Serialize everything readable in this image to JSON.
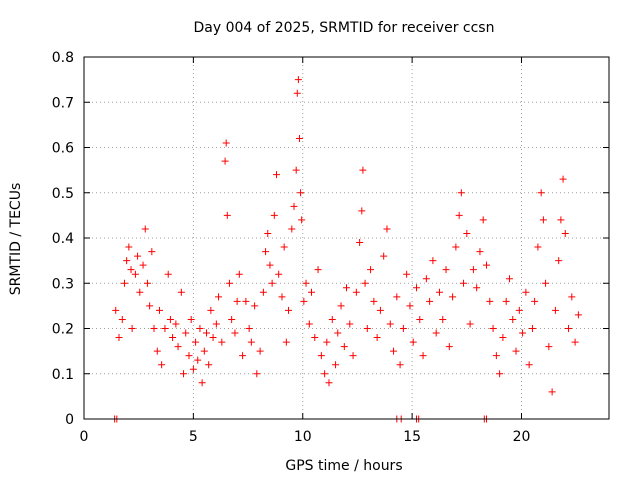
{
  "chart_data": {
    "type": "scatter",
    "title": "Day 004 of 2025, SRMTID for receiver ccsn",
    "xlabel": "GPS time / hours",
    "ylabel": "SRMTID / TECUs",
    "xlim": [
      0,
      24
    ],
    "ylim": [
      0,
      0.8
    ],
    "x_ticks": [
      0,
      5,
      10,
      15,
      20
    ],
    "y_ticks": [
      0,
      0.1,
      0.2,
      0.3,
      0.4,
      0.5,
      0.6,
      0.7,
      0.8
    ],
    "grid": true,
    "marker": "+",
    "color": "#ff0000",
    "series": [
      {
        "name": "SRMTID",
        "points": [
          [
            1.45,
            0.24
          ],
          [
            1.6,
            0.18
          ],
          [
            1.75,
            0.22
          ],
          [
            1.85,
            0.3
          ],
          [
            1.95,
            0.35
          ],
          [
            2.05,
            0.38
          ],
          [
            2.15,
            0.33
          ],
          [
            2.2,
            0.2
          ],
          [
            2.35,
            0.32
          ],
          [
            2.45,
            0.36
          ],
          [
            2.55,
            0.28
          ],
          [
            2.7,
            0.34
          ],
          [
            2.8,
            0.42
          ],
          [
            2.9,
            0.3
          ],
          [
            3.0,
            0.25
          ],
          [
            3.1,
            0.37
          ],
          [
            3.2,
            0.2
          ],
          [
            3.35,
            0.15
          ],
          [
            3.45,
            0.24
          ],
          [
            3.55,
            0.12
          ],
          [
            3.7,
            0.2
          ],
          [
            3.85,
            0.32
          ],
          [
            3.95,
            0.22
          ],
          [
            4.05,
            0.18
          ],
          [
            4.2,
            0.21
          ],
          [
            4.3,
            0.16
          ],
          [
            4.45,
            0.28
          ],
          [
            4.55,
            0.1
          ],
          [
            4.65,
            0.19
          ],
          [
            4.8,
            0.14
          ],
          [
            4.9,
            0.22
          ],
          [
            5.0,
            0.11
          ],
          [
            5.1,
            0.17
          ],
          [
            5.2,
            0.13
          ],
          [
            5.3,
            0.2
          ],
          [
            5.4,
            0.08
          ],
          [
            5.5,
            0.15
          ],
          [
            5.6,
            0.19
          ],
          [
            5.7,
            0.12
          ],
          [
            5.8,
            0.24
          ],
          [
            5.9,
            0.18
          ],
          [
            6.05,
            0.21
          ],
          [
            6.15,
            0.27
          ],
          [
            6.3,
            0.17
          ],
          [
            6.45,
            0.57
          ],
          [
            6.5,
            0.61
          ],
          [
            6.55,
            0.45
          ],
          [
            6.65,
            0.3
          ],
          [
            6.75,
            0.22
          ],
          [
            6.9,
            0.19
          ],
          [
            7.0,
            0.26
          ],
          [
            7.1,
            0.32
          ],
          [
            7.25,
            0.14
          ],
          [
            7.4,
            0.26
          ],
          [
            7.55,
            0.2
          ],
          [
            7.65,
            0.17
          ],
          [
            7.8,
            0.25
          ],
          [
            7.9,
            0.1
          ],
          [
            8.05,
            0.15
          ],
          [
            8.2,
            0.28
          ],
          [
            8.3,
            0.37
          ],
          [
            8.4,
            0.41
          ],
          [
            8.5,
            0.34
          ],
          [
            8.6,
            0.3
          ],
          [
            8.7,
            0.45
          ],
          [
            8.8,
            0.54
          ],
          [
            8.9,
            0.32
          ],
          [
            9.05,
            0.27
          ],
          [
            9.15,
            0.38
          ],
          [
            9.25,
            0.17
          ],
          [
            9.35,
            0.24
          ],
          [
            9.5,
            0.42
          ],
          [
            9.6,
            0.47
          ],
          [
            9.7,
            0.55
          ],
          [
            9.75,
            0.72
          ],
          [
            9.8,
            0.75
          ],
          [
            9.85,
            0.62
          ],
          [
            9.9,
            0.5
          ],
          [
            9.95,
            0.44
          ],
          [
            10.05,
            0.26
          ],
          [
            10.15,
            0.3
          ],
          [
            10.3,
            0.21
          ],
          [
            10.4,
            0.28
          ],
          [
            10.55,
            0.18
          ],
          [
            10.7,
            0.33
          ],
          [
            10.85,
            0.14
          ],
          [
            11.0,
            0.1
          ],
          [
            11.1,
            0.17
          ],
          [
            11.2,
            0.08
          ],
          [
            11.35,
            0.22
          ],
          [
            11.5,
            0.12
          ],
          [
            11.6,
            0.19
          ],
          [
            11.75,
            0.25
          ],
          [
            11.9,
            0.16
          ],
          [
            12.0,
            0.29
          ],
          [
            12.15,
            0.21
          ],
          [
            12.3,
            0.14
          ],
          [
            12.45,
            0.28
          ],
          [
            12.6,
            0.39
          ],
          [
            12.7,
            0.46
          ],
          [
            12.75,
            0.55
          ],
          [
            12.85,
            0.3
          ],
          [
            12.95,
            0.2
          ],
          [
            13.1,
            0.33
          ],
          [
            13.25,
            0.26
          ],
          [
            13.4,
            0.18
          ],
          [
            13.55,
            0.24
          ],
          [
            13.7,
            0.36
          ],
          [
            13.85,
            0.42
          ],
          [
            14.0,
            0.21
          ],
          [
            14.15,
            0.15
          ],
          [
            14.3,
            0.27
          ],
          [
            14.45,
            0.12
          ],
          [
            14.6,
            0.2
          ],
          [
            14.75,
            0.32
          ],
          [
            14.9,
            0.25
          ],
          [
            15.05,
            0.17
          ],
          [
            15.2,
            0.29
          ],
          [
            15.35,
            0.22
          ],
          [
            15.5,
            0.14
          ],
          [
            15.65,
            0.31
          ],
          [
            15.8,
            0.26
          ],
          [
            15.95,
            0.35
          ],
          [
            16.1,
            0.19
          ],
          [
            16.25,
            0.28
          ],
          [
            16.4,
            0.22
          ],
          [
            16.55,
            0.33
          ],
          [
            16.7,
            0.16
          ],
          [
            16.85,
            0.27
          ],
          [
            17.0,
            0.38
          ],
          [
            17.15,
            0.45
          ],
          [
            17.25,
            0.5
          ],
          [
            17.35,
            0.3
          ],
          [
            17.5,
            0.41
          ],
          [
            17.65,
            0.21
          ],
          [
            17.8,
            0.33
          ],
          [
            17.95,
            0.29
          ],
          [
            18.1,
            0.37
          ],
          [
            18.25,
            0.44
          ],
          [
            18.4,
            0.34
          ],
          [
            18.55,
            0.26
          ],
          [
            18.7,
            0.2
          ],
          [
            18.85,
            0.14
          ],
          [
            19.0,
            0.1
          ],
          [
            19.15,
            0.18
          ],
          [
            19.3,
            0.26
          ],
          [
            19.45,
            0.31
          ],
          [
            19.6,
            0.22
          ],
          [
            19.75,
            0.15
          ],
          [
            19.9,
            0.24
          ],
          [
            20.05,
            0.19
          ],
          [
            20.2,
            0.28
          ],
          [
            20.35,
            0.12
          ],
          [
            20.5,
            0.2
          ],
          [
            20.6,
            0.26
          ],
          [
            20.75,
            0.38
          ],
          [
            20.9,
            0.5
          ],
          [
            21.0,
            0.44
          ],
          [
            21.1,
            0.3
          ],
          [
            21.25,
            0.16
          ],
          [
            21.4,
            0.06
          ],
          [
            21.55,
            0.24
          ],
          [
            21.7,
            0.35
          ],
          [
            21.8,
            0.44
          ],
          [
            21.9,
            0.53
          ],
          [
            22.0,
            0.41
          ],
          [
            22.15,
            0.2
          ],
          [
            22.3,
            0.27
          ],
          [
            22.45,
            0.17
          ],
          [
            22.6,
            0.23
          ]
        ]
      }
    ],
    "zero_markers": [
      1.4,
      1.5,
      14.3,
      14.5,
      15.2,
      15.3,
      18.3,
      18.4
    ]
  }
}
